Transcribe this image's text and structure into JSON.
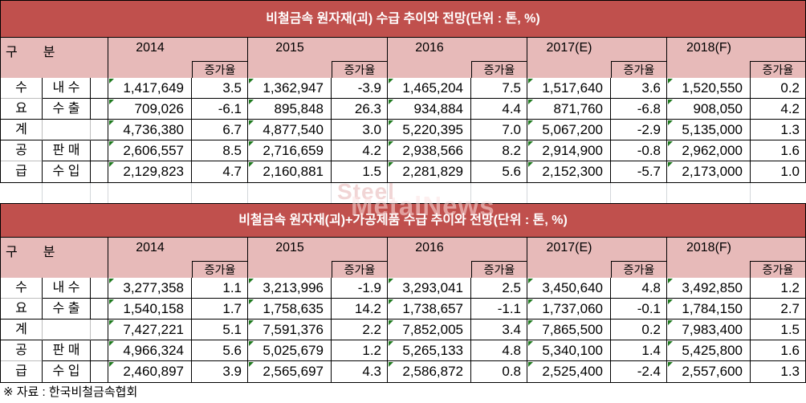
{
  "header": {
    "group_label": "구　　분",
    "growth_label": "증가율",
    "years": [
      "2014",
      "2015",
      "2016",
      "2017(E)",
      "2018(F)"
    ]
  },
  "tables": [
    {
      "title": "비철금속 원자재(괴) 수급 추이와 전망(단위 : 톤, %)",
      "rows": [
        {
          "cat": "수",
          "item": "내 수",
          "cells": [
            [
              "1,417,649",
              "3.5"
            ],
            [
              "1,362,947",
              "-3.9"
            ],
            [
              "1,465,204",
              "7.5"
            ],
            [
              "1,517,640",
              "3.6"
            ],
            [
              "1,520,550",
              "0.2"
            ]
          ]
        },
        {
          "cat": "요",
          "item": "수 출",
          "cells": [
            [
              "709,026",
              "-6.1"
            ],
            [
              "895,848",
              "26.3"
            ],
            [
              "934,884",
              "4.4"
            ],
            [
              "871,760",
              "-6.8"
            ],
            [
              "908,050",
              "4.2"
            ]
          ]
        },
        {
          "cat": "계",
          "item": "",
          "cells": [
            [
              "4,736,380",
              "6.7"
            ],
            [
              "4,877,540",
              "3.0"
            ],
            [
              "5,220,395",
              "7.0"
            ],
            [
              "5,067,200",
              "-2.9"
            ],
            [
              "5,135,000",
              "1.3"
            ]
          ]
        },
        {
          "cat": "공",
          "item": "판 매",
          "cells": [
            [
              "2,606,557",
              "8.5"
            ],
            [
              "2,716,659",
              "4.2"
            ],
            [
              "2,938,566",
              "8.2"
            ],
            [
              "2,914,900",
              "-0.8"
            ],
            [
              "2,962,000",
              "1.6"
            ]
          ]
        },
        {
          "cat": "급",
          "item": "수 입",
          "cells": [
            [
              "2,129,823",
              "4.7"
            ],
            [
              "2,160,881",
              "1.5"
            ],
            [
              "2,281,829",
              "5.6"
            ],
            [
              "2,152,300",
              "-5.7"
            ],
            [
              "2,173,000",
              "1.0"
            ]
          ]
        }
      ]
    },
    {
      "title": "비철금속 원자재(괴)+가공제품 수급 추이와 전망(단위 : 톤, %)",
      "rows": [
        {
          "cat": "수",
          "item": "내 수",
          "cells": [
            [
              "3,277,358",
              "1.1"
            ],
            [
              "3,213,996",
              "-1.9"
            ],
            [
              "3,293,041",
              "2.5"
            ],
            [
              "3,450,640",
              "4.8"
            ],
            [
              "3,492,850",
              "1.2"
            ]
          ]
        },
        {
          "cat": "요",
          "item": "수 출",
          "cells": [
            [
              "1,540,158",
              "1.7"
            ],
            [
              "1,758,635",
              "14.2"
            ],
            [
              "1,738,657",
              "-1.1"
            ],
            [
              "1,737,060",
              "-0.1"
            ],
            [
              "1,784,150",
              "2.7"
            ]
          ]
        },
        {
          "cat": "계",
          "item": "",
          "cells": [
            [
              "7,427,221",
              "5.1"
            ],
            [
              "7,591,376",
              "2.2"
            ],
            [
              "7,852,005",
              "3.4"
            ],
            [
              "7,865,500",
              "0.2"
            ],
            [
              "7,983,400",
              "1.5"
            ]
          ]
        },
        {
          "cat": "공",
          "item": "판 매",
          "cells": [
            [
              "4,966,324",
              "5.6"
            ],
            [
              "5,025,679",
              "1.2"
            ],
            [
              "5,265,133",
              "4.8"
            ],
            [
              "5,340,100",
              "1.4"
            ],
            [
              "5,425,800",
              "1.6"
            ]
          ]
        },
        {
          "cat": "급",
          "item": "수 입",
          "cells": [
            [
              "2,460,897",
              "3.9"
            ],
            [
              "2,565,697",
              "4.3"
            ],
            [
              "2,586,872",
              "0.8"
            ],
            [
              "2,525,400",
              "-2.4"
            ],
            [
              "2,557,600",
              "1.3"
            ]
          ]
        }
      ]
    }
  ],
  "watermark": {
    "line1": "Steel",
    "line2": "MetalNews"
  },
  "footer": {
    "source_note": "※ 자료 : 한국비철금속협회"
  },
  "colors": {
    "title_bar": "#c0504d",
    "header_fill": "#e7bab9",
    "border": "#000000",
    "merged_gridline": "#bdbdbd",
    "triangle_green": "#1f7a1f"
  },
  "chart_data": [
    {
      "type": "table",
      "title": "비철금속 원자재(괴) 수급 추이와 전망",
      "unit": "톤, %",
      "columns": [
        "2014",
        "2014 증가율",
        "2015",
        "2015 증가율",
        "2016",
        "2016 증가율",
        "2017(E)",
        "2017(E) 증가율",
        "2018(F)",
        "2018(F) 증가율"
      ],
      "rows": [
        {
          "group": "수요",
          "item": "내수",
          "values": [
            1417649,
            3.5,
            1362947,
            -3.9,
            1465204,
            7.5,
            1517640,
            3.6,
            1520550,
            0.2
          ]
        },
        {
          "group": "수요",
          "item": "수출",
          "values": [
            709026,
            -6.1,
            895848,
            26.3,
            934884,
            4.4,
            871760,
            -6.8,
            908050,
            4.2
          ]
        },
        {
          "group": "계",
          "item": "계",
          "values": [
            4736380,
            6.7,
            4877540,
            3.0,
            5220395,
            7.0,
            5067200,
            -2.9,
            5135000,
            1.3
          ]
        },
        {
          "group": "공급",
          "item": "판매",
          "values": [
            2606557,
            8.5,
            2716659,
            4.2,
            2938566,
            8.2,
            2914900,
            -0.8,
            2962000,
            1.6
          ]
        },
        {
          "group": "공급",
          "item": "수입",
          "values": [
            2129823,
            4.7,
            2160881,
            1.5,
            2281829,
            5.6,
            2152300,
            -5.7,
            2173000,
            1.0
          ]
        }
      ]
    },
    {
      "type": "table",
      "title": "비철금속 원자재(괴)+가공제품 수급 추이와 전망",
      "unit": "톤, %",
      "columns": [
        "2014",
        "2014 증가율",
        "2015",
        "2015 증가율",
        "2016",
        "2016 증가율",
        "2017(E)",
        "2017(E) 증가율",
        "2018(F)",
        "2018(F) 증가율"
      ],
      "rows": [
        {
          "group": "수요",
          "item": "내수",
          "values": [
            3277358,
            1.1,
            3213996,
            -1.9,
            3293041,
            2.5,
            3450640,
            4.8,
            3492850,
            1.2
          ]
        },
        {
          "group": "수요",
          "item": "수출",
          "values": [
            1540158,
            1.7,
            1758635,
            14.2,
            1738657,
            -1.1,
            1737060,
            -0.1,
            1784150,
            2.7
          ]
        },
        {
          "group": "계",
          "item": "계",
          "values": [
            7427221,
            5.1,
            7591376,
            2.2,
            7852005,
            3.4,
            7865500,
            0.2,
            7983400,
            1.5
          ]
        },
        {
          "group": "공급",
          "item": "판매",
          "values": [
            4966324,
            5.6,
            5025679,
            1.2,
            5265133,
            4.8,
            5340100,
            1.4,
            5425800,
            1.6
          ]
        },
        {
          "group": "공급",
          "item": "수입",
          "values": [
            2460897,
            3.9,
            2565697,
            4.3,
            2586872,
            0.8,
            2525400,
            -2.4,
            2557600,
            1.3
          ]
        }
      ]
    }
  ]
}
